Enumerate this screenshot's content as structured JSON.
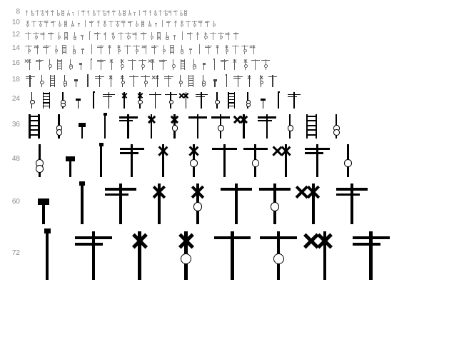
{
  "rows": [
    {
      "size": 8,
      "label": "8",
      "glyph_count": 32,
      "opacity": 0.35
    },
    {
      "size": 10,
      "label": "10",
      "glyph_count": 30,
      "opacity": 0.4
    },
    {
      "size": 12,
      "label": "12",
      "glyph_count": 28,
      "opacity": 0.45
    },
    {
      "size": 14,
      "label": "14",
      "glyph_count": 26,
      "opacity": 0.5
    },
    {
      "size": 16,
      "label": "16",
      "glyph_count": 24,
      "opacity": 0.6
    },
    {
      "size": 18,
      "label": "18",
      "glyph_count": 22,
      "opacity": 0.75
    },
    {
      "size": 24,
      "label": "24",
      "glyph_count": 18,
      "opacity": 1.0
    },
    {
      "size": 36,
      "label": "36",
      "glyph_count": 14,
      "opacity": 1.0
    },
    {
      "size": 48,
      "label": "48",
      "glyph_count": 11,
      "opacity": 1.0
    },
    {
      "size": 60,
      "label": "60",
      "glyph_count": 9,
      "opacity": 1.0
    },
    {
      "size": 72,
      "label": "72",
      "glyph_count": 8,
      "opacity": 1.0
    }
  ],
  "glyph_types": [
    "pole-cross",
    "pole-cross-ring",
    "pole-arm",
    "pole-arm-ring",
    "double-cross",
    "bracket",
    "pole-ring",
    "ladder",
    "signal-dot",
    "low-signal",
    "tall-pole",
    "gantry"
  ],
  "colors": {
    "ink": "#000000",
    "label": "#888888",
    "faint": "#aaaaaa",
    "background": "#ffffff"
  }
}
